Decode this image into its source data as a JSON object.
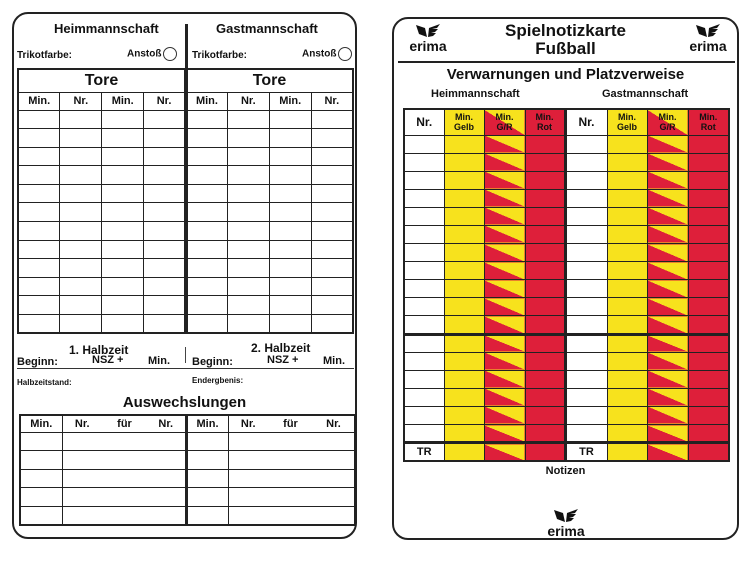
{
  "left_card": {
    "home_team": "Heimmannschaft",
    "away_team": "Gastmannschaft",
    "jersey_label": "Trikotfarbe:",
    "kickoff_label": "Anstoß",
    "goals_title": "Tore",
    "goals_columns": [
      "Min.",
      "Nr.",
      "Min.",
      "Nr."
    ],
    "goals_rows": 12,
    "half1": {
      "title": "1. Halbzeit",
      "start": "Beginn:",
      "nsz": "NSZ +",
      "min": "Min."
    },
    "half2": {
      "title": "2. Halbzeit",
      "start": "Beginn:",
      "nsz": "NSZ +",
      "min": "Min."
    },
    "halftime_score": "Halbzeitstand:",
    "final_result": "Endergbenis:",
    "subs_title": "Auswechslungen",
    "subs_columns": [
      "Min.",
      "Nr.",
      "für",
      "Nr."
    ],
    "subs_rows": 5
  },
  "right_card": {
    "title_line1": "Spielnotizkarte",
    "title_line2": "Fußball",
    "brand": "erima",
    "section_title": "Verwarnungen und Platzverweise",
    "home_team": "Heimmannschaft",
    "away_team": "Gastmannschaft",
    "columns": [
      {
        "label": "Nr.",
        "color": "#ffffff"
      },
      {
        "label": "Min. Gelb",
        "line1": "Min.",
        "line2": "Gelb",
        "color": "#f7e21d"
      },
      {
        "label": "Min. G/R",
        "line1": "Min.",
        "line2": "G/R",
        "color": "split"
      },
      {
        "label": "Min. Rot",
        "line1": "Min.",
        "line2": "Rot",
        "color": "#de1f3a"
      }
    ],
    "player_rows_block1": 11,
    "player_rows_block2": 6,
    "staff_row_label": "TR",
    "notes_label": "Notizen"
  },
  "colors": {
    "yellow": "#f7e21d",
    "red": "#de1f3a",
    "line": "#222222"
  }
}
